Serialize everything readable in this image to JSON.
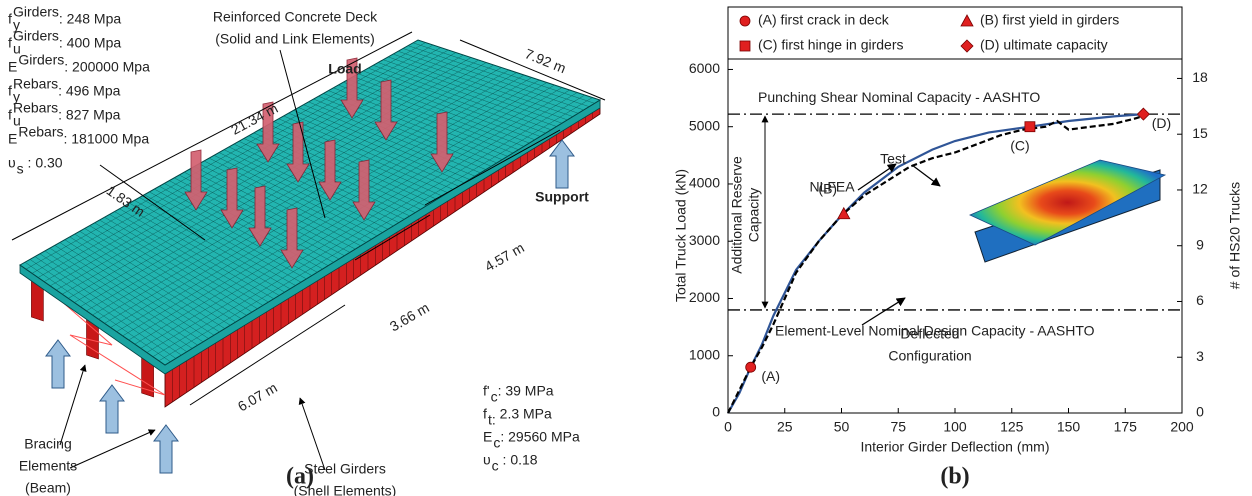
{
  "figure_a": {
    "label": "(a)",
    "steel_properties": [
      {
        "symbol": "f",
        "sup": "Girders",
        "sub": "y",
        "value": ": 248 Mpa"
      },
      {
        "symbol": "f",
        "sup": "Girders",
        "sub": "u",
        "value": ": 400 Mpa"
      },
      {
        "symbol": "E",
        "sup": "Girders",
        "value": ": 200000 Mpa"
      },
      {
        "symbol": "f",
        "sup": "Rebars",
        "sub": "y",
        "value": ": 496 Mpa"
      },
      {
        "symbol": "f",
        "sup": "Rebars",
        "sub": "u",
        "value": ": 827 Mpa"
      },
      {
        "symbol": "E",
        "sup": "Rebars",
        "value": ": 181000 Mpa"
      },
      {
        "symbol": "υ",
        "sub": "s",
        "value": " : 0.30"
      }
    ],
    "concrete_properties": [
      {
        "symbol": "f'",
        "sub": "c",
        "value": ": 39 MPa"
      },
      {
        "symbol": "f",
        "sub": "t:",
        "value": " 2.3 MPa"
      },
      {
        "symbol": "E",
        "sub": "c",
        "value": ": 29560 MPa"
      },
      {
        "symbol": "υ",
        "sub": "c",
        "value": " : 0.18"
      }
    ],
    "deck_label": [
      "Reinforced Concrete Deck",
      "(Solid and Link Elements)"
    ],
    "load_label": "Load",
    "support_label": "Support",
    "bracing_label": [
      "Bracing",
      "Elements",
      "(Beam)"
    ],
    "girders_label": [
      "Steel Girders",
      "(Shell Elements)"
    ],
    "dimensions": [
      "21.34 m",
      "7.92 m",
      "1.83 m",
      "4.57 m",
      "3.66 m",
      "6.07 m"
    ]
  },
  "chart_data": {
    "type": "line",
    "label": "(b)",
    "xlabel": "Interior Girder Deflection (mm)",
    "ylabel": "Total Truck Load (kN)",
    "y2label": "# of HS20 Trucks",
    "xlim": [
      0,
      200
    ],
    "xticks": [
      0,
      25,
      50,
      75,
      100,
      125,
      150,
      175,
      200
    ],
    "ylim": [
      0,
      6200
    ],
    "yticks": [
      0,
      1000,
      2000,
      3000,
      4000,
      5000,
      6000
    ],
    "y2lim": [
      0,
      19.1
    ],
    "y2ticks": [
      0,
      3,
      6,
      9,
      12,
      15,
      18
    ],
    "series": [
      {
        "name": "NLFEA",
        "color": "#2f5597",
        "dash": "solid",
        "x": [
          0,
          5,
          10,
          15,
          20,
          25,
          30,
          40,
          50,
          60,
          75,
          90,
          100,
          115,
          133,
          150,
          170,
          183
        ],
        "values": [
          0,
          350,
          800,
          1200,
          1700,
          2100,
          2500,
          3000,
          3450,
          3850,
          4300,
          4600,
          4750,
          4900,
          5000,
          5100,
          5180,
          5220
        ]
      },
      {
        "name": "Test",
        "color": "#000000",
        "dash": "dashed",
        "x": [
          0,
          10,
          15,
          20,
          25,
          30,
          40,
          50,
          60,
          70,
          80,
          90,
          95,
          100,
          110,
          120,
          130,
          140,
          145,
          150,
          160,
          170,
          180,
          185
        ],
        "values": [
          0,
          800,
          1150,
          1550,
          2000,
          2450,
          3000,
          3450,
          3800,
          4050,
          4300,
          4450,
          4500,
          4550,
          4700,
          4850,
          4950,
          5000,
          5100,
          4950,
          5000,
          5050,
          5150,
          5220
        ]
      }
    ],
    "events": [
      {
        "name": "(A) first crack in deck",
        "label": "(A)",
        "shape": "circle",
        "color": "#e02020",
        "x": 10,
        "y": 800
      },
      {
        "name": "(B) first yield in girders",
        "label": "(B)",
        "shape": "triangle",
        "color": "#e02020",
        "x": 51,
        "y": 3480
      },
      {
        "name": "(C) first hinge in girders",
        "label": "(C)",
        "shape": "square",
        "color": "#e02020",
        "x": 133,
        "y": 5000
      },
      {
        "name": "(D) ultimate capacity",
        "label": "(D)",
        "shape": "diamond",
        "color": "#e02020",
        "x": 183,
        "y": 5220
      }
    ],
    "reference_lines": [
      {
        "value": 5220,
        "label": "Punching Shear Nominal Capacity - AASHTO"
      },
      {
        "value": 1800,
        "label": "Element-Level Nominal Design Capacity - AASHTO"
      }
    ],
    "reserve_label": [
      "Additional Reserve",
      "Capacity"
    ],
    "inset_label": [
      "Deflected",
      "Configuration"
    ]
  }
}
